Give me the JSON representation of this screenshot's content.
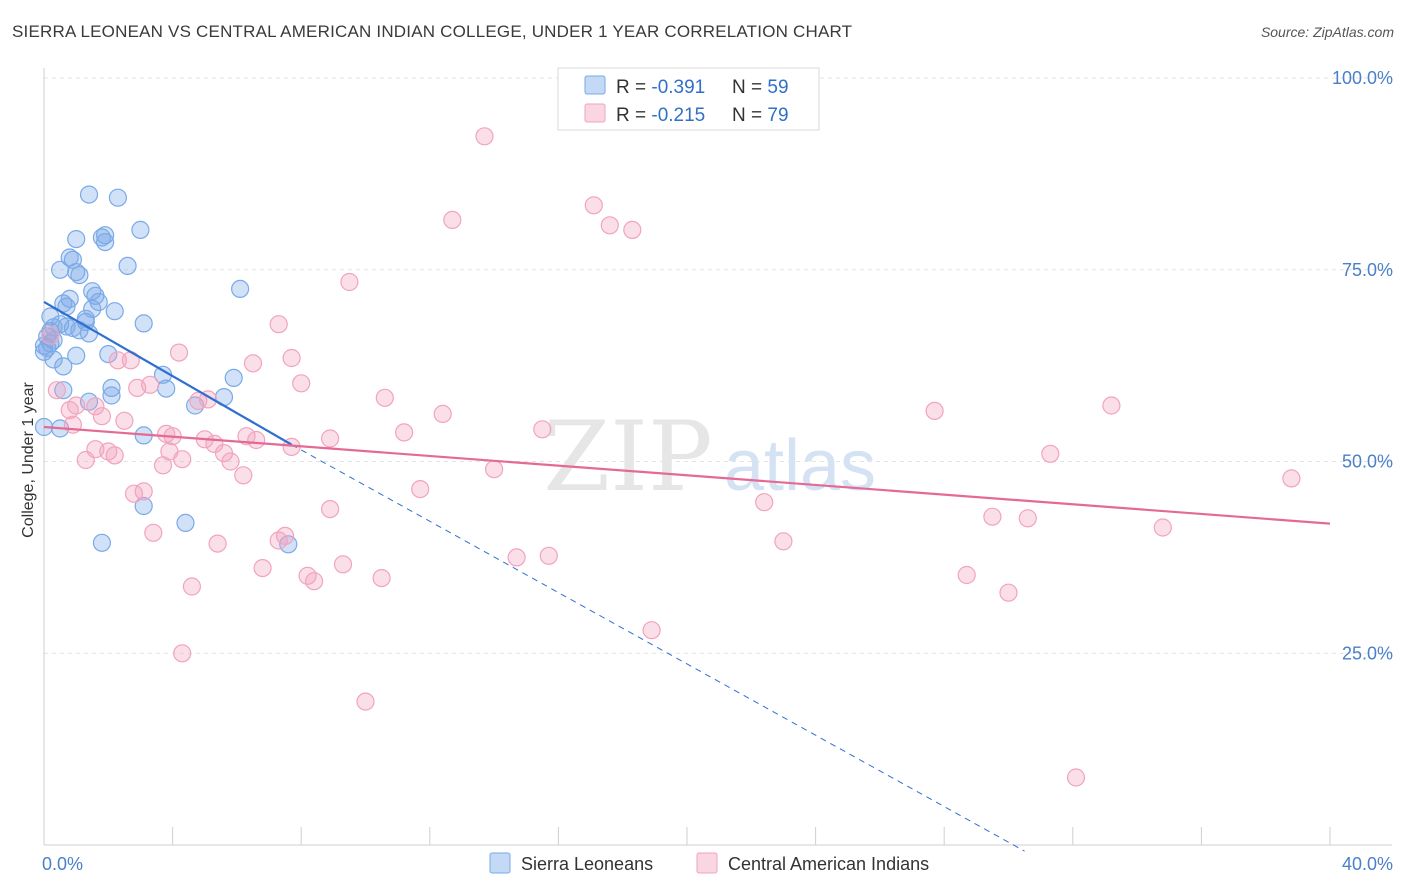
{
  "title": "SIERRA LEONEAN VS CENTRAL AMERICAN INDIAN COLLEGE, UNDER 1 YEAR CORRELATION CHART",
  "source": "Source: ZipAtlas.com",
  "watermark": {
    "zip": "ZIP",
    "atlas": "atlas"
  },
  "chart_data": {
    "type": "scatter",
    "title": "SIERRA LEONEAN VS CENTRAL AMERICAN INDIAN COLLEGE, UNDER 1 YEAR CORRELATION CHART",
    "xlabel": "",
    "ylabel": "College, Under 1 year",
    "xlim": [
      0,
      40
    ],
    "ylim": [
      0,
      100
    ],
    "x_tick_labels": {
      "min": "0.0%",
      "max": "40.0%"
    },
    "y_ticks": [
      25,
      50,
      75,
      100
    ],
    "y_tick_labels": [
      "25.0%",
      "50.0%",
      "75.0%",
      "100.0%"
    ],
    "legend_top": [
      {
        "r_label": "R = ",
        "r_value": "-0.391",
        "n_label": "N = ",
        "n_value": "59"
      },
      {
        "r_label": "R = ",
        "r_value": "-0.215",
        "n_label": "N = ",
        "n_value": "79"
      }
    ],
    "series": [
      {
        "name": "Sierra Leoneans",
        "color": "#7aaae8",
        "line_color": "#2f6fd0",
        "trend": {
          "x0": 0,
          "y0": 70.8,
          "x1": 7.7,
          "y1": 52.2,
          "dash_x1": 30.5,
          "dash_y1": -0.8
        },
        "points": [
          [
            2.3,
            84.4
          ],
          [
            1.4,
            84.8
          ],
          [
            3.0,
            80.2
          ],
          [
            1.9,
            79.5
          ],
          [
            1.8,
            79.2
          ],
          [
            1.0,
            79.0
          ],
          [
            1.9,
            78.6
          ],
          [
            0.9,
            76.3
          ],
          [
            2.6,
            75.5
          ],
          [
            0.5,
            75.0
          ],
          [
            0.8,
            76.6
          ],
          [
            1.0,
            74.7
          ],
          [
            1.1,
            74.3
          ],
          [
            6.1,
            72.5
          ],
          [
            1.5,
            72.2
          ],
          [
            1.6,
            71.6
          ],
          [
            0.8,
            71.2
          ],
          [
            1.7,
            70.8
          ],
          [
            0.6,
            70.6
          ],
          [
            0.7,
            70.2
          ],
          [
            1.5,
            69.9
          ],
          [
            2.2,
            69.6
          ],
          [
            0.2,
            68.9
          ],
          [
            1.3,
            68.6
          ],
          [
            1.3,
            68.2
          ],
          [
            3.1,
            68.0
          ],
          [
            0.5,
            67.9
          ],
          [
            0.7,
            67.6
          ],
          [
            0.9,
            67.4
          ],
          [
            0.2,
            67.0
          ],
          [
            1.1,
            67.1
          ],
          [
            1.4,
            66.7
          ],
          [
            0.1,
            66.3
          ],
          [
            0.3,
            65.8
          ],
          [
            0.2,
            65.4
          ],
          [
            0.0,
            65.1
          ],
          [
            0.1,
            64.8
          ],
          [
            0.0,
            64.3
          ],
          [
            2.0,
            64.0
          ],
          [
            1.0,
            63.8
          ],
          [
            0.3,
            63.3
          ],
          [
            5.9,
            60.9
          ],
          [
            3.7,
            61.3
          ],
          [
            3.8,
            59.5
          ],
          [
            2.1,
            59.6
          ],
          [
            0.6,
            59.3
          ],
          [
            2.1,
            58.6
          ],
          [
            5.6,
            58.4
          ],
          [
            1.4,
            57.8
          ],
          [
            4.7,
            57.3
          ],
          [
            3.1,
            53.4
          ],
          [
            0.5,
            54.3
          ],
          [
            0.0,
            54.5
          ],
          [
            3.1,
            44.2
          ],
          [
            4.4,
            42.0
          ],
          [
            1.8,
            39.4
          ],
          [
            7.6,
            39.2
          ],
          [
            0.6,
            62.4
          ],
          [
            0.3,
            67.5
          ]
        ]
      },
      {
        "name": "Central American Indians",
        "color": "#f2a3bd",
        "line_color": "#e56a93",
        "trend": {
          "x0": 0,
          "y0": 54.5,
          "x1": 40,
          "y1": 41.9
        },
        "points": [
          [
            13.7,
            92.4
          ],
          [
            17.1,
            83.4
          ],
          [
            12.7,
            81.5
          ],
          [
            17.6,
            80.8
          ],
          [
            18.3,
            80.2
          ],
          [
            9.5,
            73.4
          ],
          [
            7.3,
            67.9
          ],
          [
            0.2,
            66.4
          ],
          [
            4.2,
            64.2
          ],
          [
            7.7,
            63.5
          ],
          [
            2.3,
            63.2
          ],
          [
            2.7,
            63.2
          ],
          [
            6.5,
            62.8
          ],
          [
            8.0,
            60.2
          ],
          [
            3.3,
            60.0
          ],
          [
            2.9,
            59.6
          ],
          [
            0.4,
            59.3
          ],
          [
            10.6,
            58.3
          ],
          [
            5.1,
            58.1
          ],
          [
            4.8,
            57.9
          ],
          [
            1.6,
            57.2
          ],
          [
            1.0,
            57.3
          ],
          [
            0.8,
            56.7
          ],
          [
            27.7,
            56.6
          ],
          [
            33.2,
            57.3
          ],
          [
            12.4,
            56.2
          ],
          [
            1.8,
            55.9
          ],
          [
            2.5,
            55.3
          ],
          [
            0.9,
            54.8
          ],
          [
            15.5,
            54.2
          ],
          [
            11.2,
            53.8
          ],
          [
            3.8,
            53.6
          ],
          [
            6.3,
            53.3
          ],
          [
            6.6,
            52.8
          ],
          [
            5.0,
            52.9
          ],
          [
            5.3,
            52.3
          ],
          [
            1.6,
            51.6
          ],
          [
            7.7,
            51.9
          ],
          [
            3.9,
            51.3
          ],
          [
            2.0,
            51.3
          ],
          [
            5.6,
            51.1
          ],
          [
            2.2,
            50.8
          ],
          [
            4.3,
            50.3
          ],
          [
            1.3,
            50.2
          ],
          [
            5.8,
            50.0
          ],
          [
            3.7,
            49.5
          ],
          [
            14.0,
            49.0
          ],
          [
            31.3,
            51.0
          ],
          [
            38.8,
            47.8
          ],
          [
            6.2,
            48.2
          ],
          [
            11.7,
            46.4
          ],
          [
            3.1,
            46.1
          ],
          [
            2.8,
            45.8
          ],
          [
            22.4,
            44.7
          ],
          [
            8.9,
            43.8
          ],
          [
            29.5,
            42.8
          ],
          [
            30.6,
            42.6
          ],
          [
            34.8,
            41.4
          ],
          [
            3.4,
            40.7
          ],
          [
            7.5,
            40.3
          ],
          [
            7.3,
            39.7
          ],
          [
            5.4,
            39.3
          ],
          [
            23.0,
            39.6
          ],
          [
            14.7,
            37.5
          ],
          [
            15.7,
            37.7
          ],
          [
            9.3,
            36.6
          ],
          [
            6.8,
            36.1
          ],
          [
            8.2,
            35.1
          ],
          [
            28.7,
            35.2
          ],
          [
            10.5,
            34.8
          ],
          [
            8.4,
            34.4
          ],
          [
            4.6,
            33.7
          ],
          [
            30.0,
            32.9
          ],
          [
            18.9,
            28.0
          ],
          [
            4.3,
            25.0
          ],
          [
            10.0,
            18.7
          ],
          [
            32.1,
            8.8
          ],
          [
            8.9,
            53.0
          ],
          [
            4.0,
            53.3
          ]
        ]
      }
    ]
  }
}
